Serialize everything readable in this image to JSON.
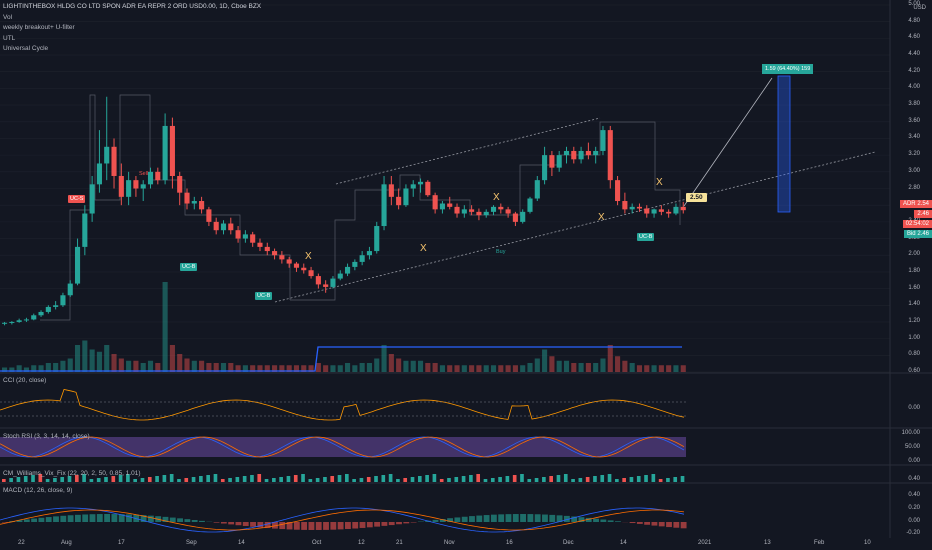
{
  "legend": {
    "title": "LIGHTINTHEBOX HLDG CO LTD SPON ADR EA REPR 2 ORD USD0.00, 1D, Cboe BZX",
    "lines": [
      "Vol",
      "weekly breakout+ U-filter",
      "UTL",
      "Universal Cycle"
    ]
  },
  "currency": "USD",
  "price_scale": [
    "5.00",
    "4.80",
    "4.60",
    "4.40",
    "4.20",
    "4.00",
    "3.80",
    "3.60",
    "3.40",
    "3.20",
    "3.00",
    "2.80",
    "2.60",
    "2.40",
    "2.20",
    "2.00",
    "1.80",
    "1.60",
    "1.40",
    "1.20",
    "1.00",
    "0.80",
    "0.60"
  ],
  "price_tags": [
    {
      "text": "ADR",
      "value": "2.54",
      "color": "#ef5350"
    },
    {
      "text": "",
      "value": "2.46",
      "color": "#ef5350"
    },
    {
      "text": "",
      "value": "02:54:02",
      "color": "#ef5350"
    },
    {
      "text": "Bid",
      "value": "2.46",
      "color": "#26a69a"
    }
  ],
  "target_price": "2.50",
  "measure_label": "1.59 (64.40%) 159",
  "signals": {
    "uc_b": "UC-B",
    "sell": "Sell",
    "buy": "Buy",
    "cross": "X",
    "s_marker": "S",
    "earnings": "E"
  },
  "panes": {
    "cci": {
      "label": "CCI (20, close)",
      "scale": [
        "0.00"
      ]
    },
    "stoch": {
      "label": "Stoch RSI (3, 3, 14, 14, close)",
      "scale": [
        "100.00",
        "50.00",
        "0.00"
      ]
    },
    "cmw": {
      "label": "CM_Williams_Vix_Fix (22, 20, 2, 50, 0.85, 1.01)",
      "scale": [
        "0.40",
        "0.20",
        "0.00"
      ]
    },
    "macd": {
      "label": "MACD (12, 26, close, 9)",
      "scale": [
        "0.40",
        "0.20",
        "0.00",
        "-0.20"
      ]
    }
  },
  "time_axis": [
    "22",
    "Aug",
    "17",
    "Sep",
    "14",
    "Oct",
    "12",
    "21",
    "Nov",
    "16",
    "Dec",
    "14",
    "2021",
    "13",
    "Feb",
    "10"
  ],
  "colors": {
    "up": "#26a69a",
    "down": "#ef5350",
    "bg": "#131722",
    "grid": "#1e222d",
    "volume_line": "#2962ff"
  },
  "chart_data": {
    "type": "candlestick",
    "ylim": [
      0.6,
      5.0
    ],
    "candles": [
      [
        1.18,
        1.2,
        1.16,
        1.19
      ],
      [
        1.19,
        1.21,
        1.17,
        1.2
      ],
      [
        1.2,
        1.24,
        1.19,
        1.22
      ],
      [
        1.22,
        1.25,
        1.2,
        1.23
      ],
      [
        1.23,
        1.3,
        1.22,
        1.28
      ],
      [
        1.28,
        1.34,
        1.26,
        1.32
      ],
      [
        1.32,
        1.4,
        1.3,
        1.38
      ],
      [
        1.38,
        1.45,
        1.35,
        1.4
      ],
      [
        1.4,
        1.55,
        1.38,
        1.52
      ],
      [
        1.52,
        1.7,
        1.5,
        1.66
      ],
      [
        1.66,
        2.2,
        1.64,
        2.1
      ],
      [
        2.1,
        2.6,
        2.0,
        2.5
      ],
      [
        2.5,
        2.95,
        2.4,
        2.85
      ],
      [
        2.85,
        3.5,
        2.75,
        3.1
      ],
      [
        3.1,
        3.9,
        2.9,
        3.3
      ],
      [
        3.3,
        3.4,
        2.8,
        2.95
      ],
      [
        2.95,
        3.1,
        2.6,
        2.7
      ],
      [
        2.7,
        3.0,
        2.6,
        2.9
      ],
      [
        2.9,
        2.95,
        2.7,
        2.8
      ],
      [
        2.8,
        2.9,
        2.65,
        2.85
      ],
      [
        2.85,
        3.05,
        2.8,
        3.0
      ],
      [
        3.0,
        3.05,
        2.85,
        2.9
      ],
      [
        2.9,
        3.7,
        2.85,
        3.55
      ],
      [
        3.55,
        3.65,
        2.8,
        2.95
      ],
      [
        2.95,
        3.0,
        2.6,
        2.75
      ],
      [
        2.75,
        2.8,
        2.55,
        2.62
      ],
      [
        2.62,
        2.7,
        2.55,
        2.65
      ],
      [
        2.65,
        2.7,
        2.5,
        2.55
      ],
      [
        2.55,
        2.58,
        2.35,
        2.4
      ],
      [
        2.4,
        2.45,
        2.25,
        2.3
      ],
      [
        2.3,
        2.42,
        2.25,
        2.38
      ],
      [
        2.38,
        2.45,
        2.25,
        2.3
      ],
      [
        2.3,
        2.35,
        2.15,
        2.2
      ],
      [
        2.2,
        2.3,
        2.15,
        2.25
      ],
      [
        2.25,
        2.28,
        2.1,
        2.15
      ],
      [
        2.15,
        2.2,
        2.05,
        2.1
      ],
      [
        2.1,
        2.15,
        2.0,
        2.05
      ],
      [
        2.05,
        2.08,
        1.95,
        2.0
      ],
      [
        2.0,
        2.05,
        1.9,
        1.95
      ],
      [
        1.95,
        1.98,
        1.85,
        1.9
      ],
      [
        1.9,
        1.92,
        1.8,
        1.85
      ],
      [
        1.85,
        1.9,
        1.78,
        1.82
      ],
      [
        1.82,
        1.86,
        1.72,
        1.75
      ],
      [
        1.75,
        1.78,
        1.6,
        1.65
      ],
      [
        1.65,
        1.7,
        1.55,
        1.62
      ],
      [
        1.62,
        1.75,
        1.6,
        1.72
      ],
      [
        1.72,
        1.82,
        1.7,
        1.78
      ],
      [
        1.78,
        1.9,
        1.75,
        1.86
      ],
      [
        1.86,
        1.95,
        1.82,
        1.92
      ],
      [
        1.92,
        2.05,
        1.88,
        2.0
      ],
      [
        2.0,
        2.1,
        1.95,
        2.05
      ],
      [
        2.05,
        2.4,
        2.02,
        2.35
      ],
      [
        2.35,
        2.95,
        2.3,
        2.85
      ],
      [
        2.85,
        2.95,
        2.6,
        2.7
      ],
      [
        2.7,
        2.8,
        2.55,
        2.6
      ],
      [
        2.6,
        2.85,
        2.58,
        2.8
      ],
      [
        2.8,
        2.9,
        2.7,
        2.85
      ],
      [
        2.85,
        2.92,
        2.75,
        2.88
      ],
      [
        2.88,
        2.9,
        2.7,
        2.72
      ],
      [
        2.72,
        2.75,
        2.5,
        2.55
      ],
      [
        2.55,
        2.65,
        2.5,
        2.62
      ],
      [
        2.62,
        2.7,
        2.55,
        2.58
      ],
      [
        2.58,
        2.62,
        2.45,
        2.5
      ],
      [
        2.5,
        2.6,
        2.45,
        2.55
      ],
      [
        2.55,
        2.6,
        2.48,
        2.52
      ],
      [
        2.52,
        2.56,
        2.42,
        2.48
      ],
      [
        2.48,
        2.55,
        2.45,
        2.52
      ],
      [
        2.52,
        2.6,
        2.48,
        2.58
      ],
      [
        2.58,
        2.62,
        2.5,
        2.55
      ],
      [
        2.55,
        2.58,
        2.45,
        2.5
      ],
      [
        2.5,
        2.52,
        2.35,
        2.4
      ],
      [
        2.4,
        2.55,
        2.38,
        2.52
      ],
      [
        2.52,
        2.7,
        2.5,
        2.68
      ],
      [
        2.68,
        2.95,
        2.65,
        2.9
      ],
      [
        2.9,
        3.3,
        2.85,
        3.2
      ],
      [
        3.2,
        3.25,
        2.95,
        3.05
      ],
      [
        3.05,
        3.25,
        3.0,
        3.2
      ],
      [
        3.2,
        3.3,
        3.1,
        3.25
      ],
      [
        3.25,
        3.3,
        3.1,
        3.15
      ],
      [
        3.15,
        3.3,
        3.1,
        3.25
      ],
      [
        3.25,
        3.35,
        3.15,
        3.2
      ],
      [
        3.2,
        3.3,
        3.1,
        3.25
      ],
      [
        3.25,
        3.55,
        3.2,
        3.5
      ],
      [
        3.5,
        3.55,
        2.8,
        2.9
      ],
      [
        2.9,
        2.95,
        2.6,
        2.65
      ],
      [
        2.65,
        2.75,
        2.5,
        2.55
      ],
      [
        2.55,
        2.62,
        2.5,
        2.58
      ],
      [
        2.58,
        2.62,
        2.52,
        2.56
      ],
      [
        2.56,
        2.6,
        2.45,
        2.5
      ],
      [
        2.5,
        2.56,
        2.45,
        2.55
      ],
      [
        2.55,
        2.6,
        2.48,
        2.52
      ],
      [
        2.52,
        2.55,
        2.45,
        2.5
      ],
      [
        2.5,
        2.62,
        2.48,
        2.58
      ],
      [
        2.58,
        2.64,
        2.5,
        2.54
      ]
    ],
    "volume": [
      2,
      2,
      3,
      2,
      3,
      3,
      4,
      4,
      5,
      6,
      12,
      14,
      10,
      9,
      12,
      8,
      6,
      5,
      5,
      4,
      5,
      4,
      40,
      12,
      8,
      6,
      5,
      5,
      4,
      4,
      4,
      4,
      3,
      3,
      3,
      3,
      3,
      3,
      3,
      3,
      3,
      3,
      3,
      4,
      3,
      3,
      3,
      4,
      3,
      4,
      4,
      6,
      12,
      8,
      6,
      5,
      5,
      5,
      4,
      4,
      3,
      3,
      3,
      3,
      3,
      3,
      3,
      3,
      3,
      3,
      3,
      3,
      4,
      6,
      10,
      7,
      5,
      5,
      4,
      4,
      4,
      4,
      6,
      12,
      7,
      5,
      4,
      3,
      3,
      3,
      3,
      3,
      3,
      3
    ]
  }
}
